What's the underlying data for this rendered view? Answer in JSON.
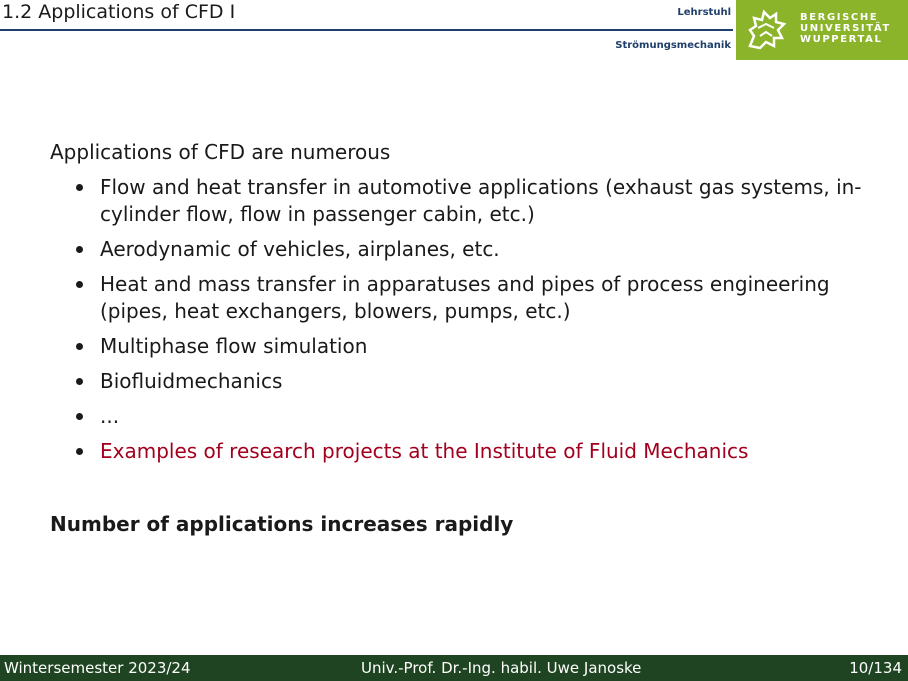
{
  "header": {
    "title": "1.2 Applications of CFD I",
    "chair_line1": "Lehrstuhl",
    "chair_line2": "Strömungsmechanik",
    "logo_lines": [
      "BERGISCHE",
      "UNIVERSITÄT",
      "WUPPERTAL"
    ]
  },
  "content": {
    "intro": "Applications of CFD are numerous",
    "items": [
      {
        "text": "Flow and heat transfer in automotive applications (exhaust gas systems, in-cylinder flow, flow in passenger cabin, etc.)"
      },
      {
        "text": "Aerodynamic of vehicles, airplanes, etc."
      },
      {
        "text": "Heat and mass transfer in apparatuses and pipes of process engineering (pipes, heat exchangers, blowers, pumps, etc.)"
      },
      {
        "text": "Multiphase flow simulation"
      },
      {
        "text": "Biofluidmechanics"
      },
      {
        "text": "..."
      },
      {
        "text": "Examples of research projects at the Institute of Fluid Mechanics"
      }
    ],
    "summary": "Number of applications increases rapidly"
  },
  "footer": {
    "semester": "Wintersemester 2023/24",
    "author": "Univ.-Prof. Dr.-Ing. habil. Uwe Janoske",
    "page": "10/134"
  },
  "colors": {
    "accent_green": "#8cb42b",
    "footer_green": "#1f4421",
    "link_red": "#a3001e",
    "rule_blue": "#1f3f6a"
  }
}
